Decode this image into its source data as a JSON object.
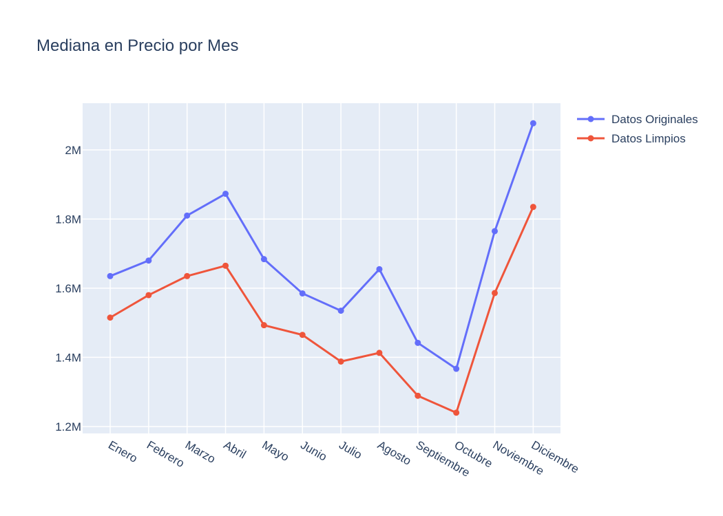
{
  "chart_data": {
    "type": "line",
    "title": "Mediana en Precio por Mes",
    "xlabel": "",
    "ylabel": "",
    "categories": [
      "Enero",
      "Febrero",
      "Marzo",
      "Abril",
      "Mayo",
      "Junio",
      "Julio",
      "Agosto",
      "Septiembre",
      "Octubre",
      "Noviembre",
      "Diciembre"
    ],
    "ylim": [
      1180000,
      2135000
    ],
    "yticks": [
      1200000,
      1400000,
      1600000,
      1800000,
      2000000
    ],
    "ytick_labels": [
      "1.2M",
      "1.4M",
      "1.6M",
      "1.8M",
      "2M"
    ],
    "grid": true,
    "legend_position": "top-right",
    "series": [
      {
        "name": "Datos Originales",
        "color": "#636efa",
        "values": [
          1635000,
          1680000,
          1810000,
          1873000,
          1684000,
          1585000,
          1535000,
          1655000,
          1442000,
          1367000,
          1765000,
          2077000
        ]
      },
      {
        "name": "Datos Limpios",
        "color": "#ef553b",
        "values": [
          1515000,
          1580000,
          1635000,
          1665000,
          1493000,
          1465000,
          1388000,
          1413000,
          1289000,
          1240000,
          1586000,
          1835000
        ]
      }
    ]
  }
}
